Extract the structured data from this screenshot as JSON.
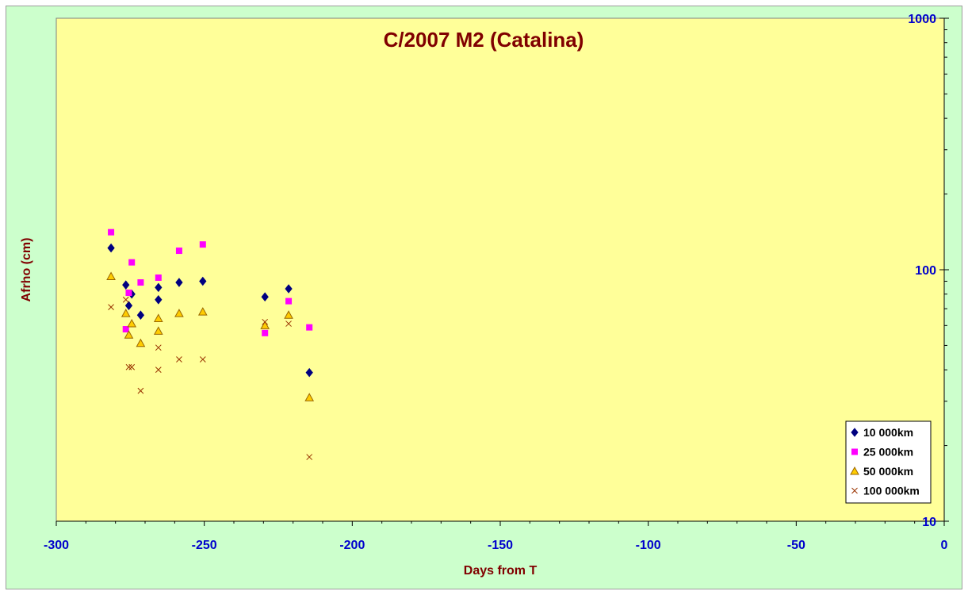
{
  "chart_data": {
    "type": "scatter",
    "title": "C/2007 M2 (Catalina)",
    "xlabel": "Days from T",
    "ylabel": "Afrho (cm)",
    "xlim": [
      -300,
      0
    ],
    "ylim": [
      10,
      1000
    ],
    "y_scale": "log",
    "grid": false,
    "legend_position": "bottom-right",
    "y_axis_side": "right",
    "x_ticks": [
      -300,
      -250,
      -200,
      -150,
      -100,
      -50,
      0
    ],
    "x_tick_labels": [
      "-300",
      "-250",
      "-200",
      "-150",
      "-100",
      "-50",
      "0"
    ],
    "y_ticks": [
      10,
      100,
      1000
    ],
    "y_tick_labels": [
      "10",
      "100",
      "1000"
    ],
    "colors": {
      "outer_background": "#ccffcc",
      "plot_background": "#ffff99",
      "title": "#800000",
      "tick_labels": "#0000cc"
    },
    "series": [
      {
        "name": "10 000km",
        "marker": "diamond",
        "color": "#000080",
        "points": [
          [
            -281.5,
            122
          ],
          [
            -276.5,
            87
          ],
          [
            -275.5,
            72
          ],
          [
            -274.5,
            80
          ],
          [
            -271.5,
            66
          ],
          [
            -265.5,
            85
          ],
          [
            -265.5,
            76
          ],
          [
            -258.5,
            89
          ],
          [
            -250.5,
            90
          ],
          [
            -229.5,
            78
          ],
          [
            -221.5,
            84
          ],
          [
            -214.5,
            39
          ]
        ]
      },
      {
        "name": "25 000km",
        "marker": "square",
        "color": "#ff00ff",
        "points": [
          [
            -281.5,
            141
          ],
          [
            -276.5,
            58
          ],
          [
            -275.5,
            81
          ],
          [
            -274.5,
            107
          ],
          [
            -271.5,
            89
          ],
          [
            -265.5,
            93
          ],
          [
            -258.5,
            119
          ],
          [
            -250.5,
            126
          ],
          [
            -229.5,
            56
          ],
          [
            -221.5,
            75
          ],
          [
            -214.5,
            59
          ]
        ]
      },
      {
        "name": "50 000km",
        "marker": "triangle",
        "color": "#ffcc00",
        "points": [
          [
            -281.5,
            94
          ],
          [
            -276.5,
            67
          ],
          [
            -275.5,
            55
          ],
          [
            -274.5,
            61
          ],
          [
            -271.5,
            51
          ],
          [
            -265.5,
            64
          ],
          [
            -265.5,
            57
          ],
          [
            -258.5,
            67
          ],
          [
            -250.5,
            68
          ],
          [
            -229.5,
            60
          ],
          [
            -221.5,
            66
          ],
          [
            -214.5,
            31
          ]
        ]
      },
      {
        "name": "100 000km",
        "marker": "x",
        "color": "#993300",
        "points": [
          [
            -281.5,
            71
          ],
          [
            -276.5,
            76
          ],
          [
            -275.5,
            41
          ],
          [
            -274.5,
            41
          ],
          [
            -271.5,
            33
          ],
          [
            -265.5,
            49
          ],
          [
            -265.5,
            40
          ],
          [
            -258.5,
            44
          ],
          [
            -250.5,
            44
          ],
          [
            -229.5,
            62
          ],
          [
            -221.5,
            61
          ],
          [
            -214.5,
            18
          ]
        ]
      }
    ]
  }
}
